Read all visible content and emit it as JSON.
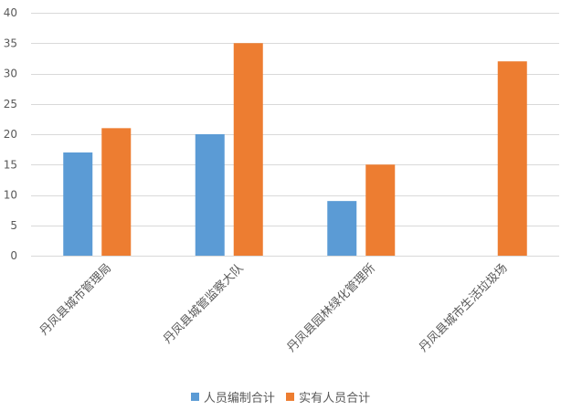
{
  "chart_data": {
    "type": "bar",
    "title": "",
    "xlabel": "",
    "ylabel": "",
    "categories": [
      "丹凤县城市管理局",
      "丹凤县城管监察大队",
      "丹凤县园林绿化管理所",
      "丹凤县城市生活垃圾场"
    ],
    "series": [
      {
        "name": "人员编制合计",
        "color": "#5B9BD5",
        "values": [
          17,
          20,
          9,
          0
        ]
      },
      {
        "name": "实有人员合计",
        "color": "#ED7D31",
        "values": [
          21,
          35,
          15,
          32
        ]
      }
    ],
    "ylim": [
      0,
      40
    ],
    "yticks": [
      0,
      5,
      10,
      15,
      20,
      25,
      30,
      35,
      40
    ],
    "grid": true,
    "legend_position": "bottom"
  }
}
